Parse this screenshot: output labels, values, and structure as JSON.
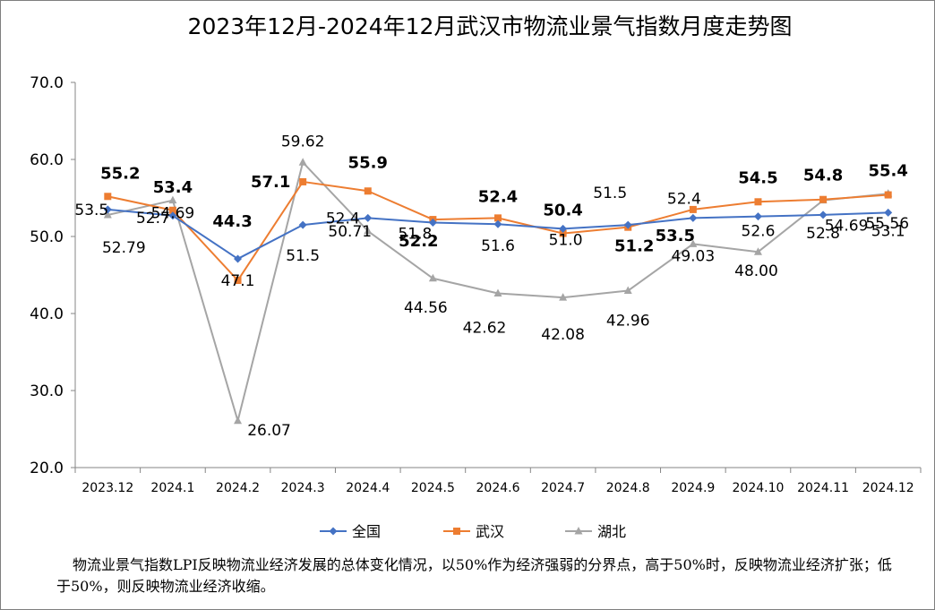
{
  "chart_data": {
    "type": "line",
    "title": "2023年12月-2024年12月武汉市物流业景气指数月度走势图",
    "categories": [
      "2023.12",
      "2024.1",
      "2024.2",
      "2024.3",
      "2024.4",
      "2024.5",
      "2024.6",
      "2024.7",
      "2024.8",
      "2024.9",
      "2024.10",
      "2024.11",
      "2024.12"
    ],
    "ylim": [
      20,
      70
    ],
    "yticks": [
      "20.0",
      "30.0",
      "40.0",
      "50.0",
      "60.0",
      "70.0"
    ],
    "grid": false,
    "legend_position": "bottom",
    "series": [
      {
        "name": "全国",
        "color": "#4472c4",
        "marker": "diamond",
        "values": [
          53.5,
          52.7,
          47.1,
          51.5,
          52.4,
          51.8,
          51.6,
          51.0,
          51.5,
          52.4,
          52.6,
          52.8,
          53.1
        ],
        "labels": [
          "53.5",
          "52.7",
          "47.1",
          "51.5",
          "52.4",
          "51.8",
          "51.6",
          "51.0",
          "51.5",
          "52.4",
          "52.6",
          "52.8",
          "53.1"
        ],
        "bold": false
      },
      {
        "name": "武汉",
        "color": "#ed7d31",
        "marker": "square",
        "values": [
          55.2,
          53.4,
          44.3,
          57.1,
          55.9,
          52.2,
          52.4,
          50.4,
          51.2,
          53.5,
          54.5,
          54.8,
          55.4
        ],
        "labels": [
          "55.2",
          "53.4",
          "44.3",
          "57.1",
          "55.9",
          "52.2",
          "52.4",
          "50.4",
          "51.2",
          "53.5",
          "54.5",
          "54.8",
          "55.4"
        ],
        "bold": true
      },
      {
        "name": "湖北",
        "color": "#a5a5a5",
        "marker": "triangle",
        "values": [
          52.79,
          54.69,
          26.07,
          59.62,
          50.71,
          44.56,
          42.62,
          42.08,
          42.96,
          49.03,
          48.0,
          54.69,
          55.56
        ],
        "labels": [
          "52.79",
          "54.69",
          "26.07",
          "59.62",
          "50.71",
          "44.56",
          "42.62",
          "42.08",
          "42.96",
          "49.03",
          "48.00",
          "54.69",
          "55.56"
        ],
        "bold": false
      }
    ]
  },
  "note": "物流业景气指数LPI反映物流业经济发展的总体变化情况，以50%作为经济强弱的分界点，高于50%时，反映物流业经济扩张；低于50%，则反映物流业经济收缩。"
}
